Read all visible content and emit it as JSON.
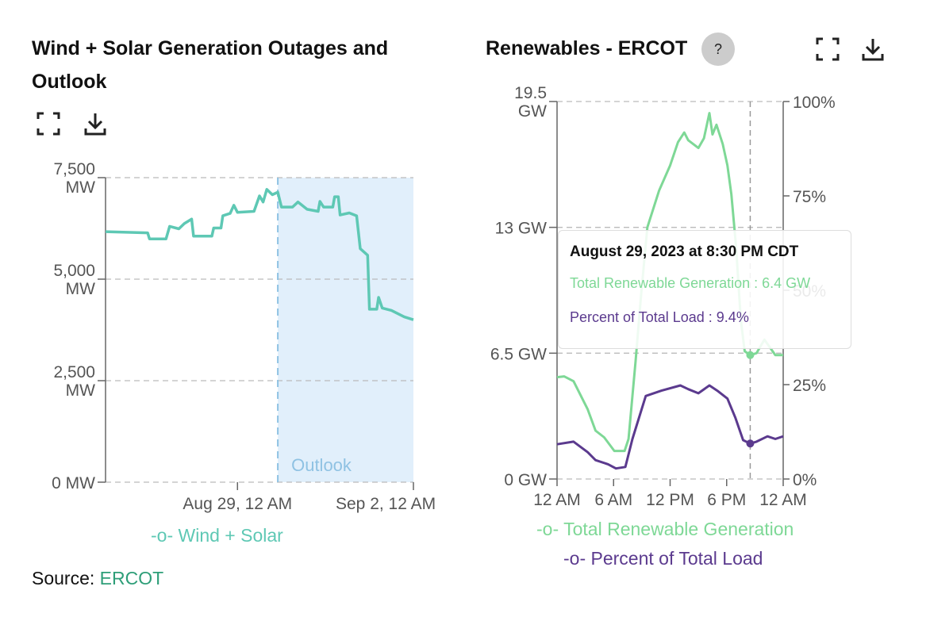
{
  "colors": {
    "wind_solar": "#5ec8b4",
    "outlook_fill": "#e1effb",
    "outlook_line": "#8fc2e3",
    "renewable": "#7ed896",
    "percent": "#5b3a8e",
    "source_link": "#2e9e78"
  },
  "left_panel": {
    "title": "Wind + Solar Generation Outages and Outlook",
    "icons": [
      "fullscreen-icon",
      "download-icon"
    ],
    "source_label": "Source: ",
    "source_link": "ERCOT"
  },
  "right_panel": {
    "title": "Renewables - ERCOT",
    "help_label": "?",
    "icons": [
      "fullscreen-icon",
      "download-icon"
    ],
    "tooltip": {
      "title": "August 29, 2023 at 8:30 PM CDT",
      "line1": "Total Renewable Generation : 6.4 GW",
      "line2": "Percent of Total Load : 9.4%"
    }
  },
  "chart_data": [
    {
      "type": "line",
      "title": "Wind + Solar Generation Outages and Outlook",
      "ylim": [
        0,
        7500
      ],
      "yticks": [
        {
          "v": 0,
          "l1": "0 MW",
          "l2": ""
        },
        {
          "v": 2500,
          "l1": "2,500",
          "l2": "MW"
        },
        {
          "v": 5000,
          "l1": "5,000",
          "l2": "MW"
        },
        {
          "v": 7500,
          "l1": "7,500",
          "l2": "MW"
        }
      ],
      "xlim": [
        "2023-08-26T00:00",
        "2023-09-02T00:00"
      ],
      "xticks": [
        {
          "t": "2023-08-29T00:00",
          "label": "Aug 29, 12 AM"
        },
        {
          "t": "2023-09-02T00:00",
          "label": "Sep 2, 12 AM"
        }
      ],
      "grid": true,
      "outlook": {
        "start": "2023-08-29T22:00",
        "label": "Outlook"
      },
      "legend": "bottom",
      "series": [
        {
          "name": "Wind + Solar",
          "points": [
            [
              "2023-08-26T00:00",
              6170
            ],
            [
              "2023-08-26T23:00",
              6140
            ],
            [
              "2023-08-27T00:00",
              5990
            ],
            [
              "2023-08-27T09:00",
              5990
            ],
            [
              "2023-08-27T11:00",
              6300
            ],
            [
              "2023-08-27T16:00",
              6240
            ],
            [
              "2023-08-27T19:00",
              6370
            ],
            [
              "2023-08-27T23:00",
              6480
            ],
            [
              "2023-08-28T00:00",
              6060
            ],
            [
              "2023-08-28T10:00",
              6060
            ],
            [
              "2023-08-28T11:00",
              6260
            ],
            [
              "2023-08-28T15:00",
              6260
            ],
            [
              "2023-08-28T16:00",
              6560
            ],
            [
              "2023-08-28T20:00",
              6620
            ],
            [
              "2023-08-28T22:00",
              6820
            ],
            [
              "2023-08-29T00:00",
              6645
            ],
            [
              "2023-08-29T09:00",
              6670
            ],
            [
              "2023-08-29T12:00",
              7050
            ],
            [
              "2023-08-29T14:00",
              6900
            ],
            [
              "2023-08-29T16:00",
              7210
            ],
            [
              "2023-08-29T19:00",
              7080
            ],
            [
              "2023-08-29T22:00",
              7140
            ],
            [
              "2023-08-30T00:00",
              6775
            ],
            [
              "2023-08-30T06:00",
              6775
            ],
            [
              "2023-08-30T09:00",
              6900
            ],
            [
              "2023-08-30T14:00",
              6720
            ],
            [
              "2023-08-30T20:00",
              6670
            ],
            [
              "2023-08-30T21:00",
              6915
            ],
            [
              "2023-08-30T23:00",
              6775
            ],
            [
              "2023-08-31T04:00",
              6775
            ],
            [
              "2023-08-31T05:00",
              7030
            ],
            [
              "2023-08-31T07:00",
              7030
            ],
            [
              "2023-08-31T08:00",
              6580
            ],
            [
              "2023-08-31T13:00",
              6630
            ],
            [
              "2023-08-31T17:00",
              6560
            ],
            [
              "2023-08-31T19:00",
              5750
            ],
            [
              "2023-08-31T23:00",
              5590
            ],
            [
              "2023-09-01T00:00",
              4260
            ],
            [
              "2023-09-01T04:00",
              4260
            ],
            [
              "2023-09-01T05:00",
              4550
            ],
            [
              "2023-09-01T07:00",
              4290
            ],
            [
              "2023-09-01T12:00",
              4230
            ],
            [
              "2023-09-01T19:00",
              4070
            ],
            [
              "2023-09-02T00:00",
              4000
            ]
          ]
        }
      ]
    },
    {
      "type": "line",
      "title": "Renewables - ERCOT",
      "ylim": [
        0,
        19.5
      ],
      "yticks": [
        {
          "v": 0,
          "l1": "0 GW",
          "l2": ""
        },
        {
          "v": 6.5,
          "l1": "6.5 GW",
          "l2": ""
        },
        {
          "v": 13,
          "l1": "13 GW",
          "l2": ""
        },
        {
          "v": 19.5,
          "l1": "19.5",
          "l2": "GW"
        }
      ],
      "y2lim": [
        0,
        100
      ],
      "y2ticks": [
        "0%",
        "25%",
        "50%",
        "75%",
        "100%"
      ],
      "xticks": [
        "12 AM",
        "6 AM",
        "12 PM",
        "6 PM",
        "12 AM"
      ],
      "grid": true,
      "legend": "bottom",
      "hover": "20:30",
      "series": [
        {
          "name": "Total Renewable Generation",
          "axis": "left",
          "points": [
            [
              "00:00",
              5.26
            ],
            [
              "00:45",
              5.3
            ],
            [
              "01:45",
              5.05
            ],
            [
              "03:15",
              3.6
            ],
            [
              "04:05",
              2.5
            ],
            [
              "05:00",
              2.15
            ],
            [
              "06:05",
              1.45
            ],
            [
              "07:10",
              1.45
            ],
            [
              "07:35",
              2.07
            ],
            [
              "08:20",
              6.1
            ],
            [
              "08:55",
              9.5
            ],
            [
              "09:35",
              13.0
            ],
            [
              "10:50",
              14.9
            ],
            [
              "12:00",
              16.2
            ],
            [
              "12:50",
              17.4
            ],
            [
              "13:30",
              17.9
            ],
            [
              "13:55",
              17.5
            ],
            [
              "15:00",
              17.1
            ],
            [
              "15:35",
              17.6
            ],
            [
              "16:10",
              18.9
            ],
            [
              "16:30",
              17.8
            ],
            [
              "16:55",
              18.3
            ],
            [
              "17:35",
              17.3
            ],
            [
              "18:05",
              16.2
            ],
            [
              "18:30",
              14.7
            ],
            [
              "19:00",
              12.0
            ],
            [
              "19:30",
              8.2
            ],
            [
              "19:55",
              6.6
            ],
            [
              "20:30",
              6.4
            ],
            [
              "21:10",
              6.5
            ],
            [
              "22:00",
              7.2
            ],
            [
              "23:10",
              6.4
            ],
            [
              "24:00",
              6.4
            ]
          ]
        },
        {
          "name": "Percent of Total Load",
          "axis": "right",
          "points": [
            [
              "00:00",
              9.2
            ],
            [
              "01:45",
              9.9
            ],
            [
              "03:15",
              7.1
            ],
            [
              "04:05",
              5.0
            ],
            [
              "05:25",
              3.9
            ],
            [
              "06:15",
              2.8
            ],
            [
              "07:15",
              3.2
            ],
            [
              "08:00",
              10.6
            ],
            [
              "09:25",
              22.0
            ],
            [
              "11:05",
              23.4
            ],
            [
              "13:05",
              24.8
            ],
            [
              "13:55",
              23.8
            ],
            [
              "15:00",
              22.7
            ],
            [
              "16:10",
              24.8
            ],
            [
              "17:00",
              23.4
            ],
            [
              "18:05",
              21.3
            ],
            [
              "18:55",
              16.3
            ],
            [
              "19:45",
              10.3
            ],
            [
              "20:30",
              9.4
            ],
            [
              "21:10",
              9.9
            ],
            [
              "22:20",
              11.3
            ],
            [
              "23:10",
              10.6
            ],
            [
              "24:00",
              11.3
            ]
          ]
        }
      ]
    }
  ]
}
